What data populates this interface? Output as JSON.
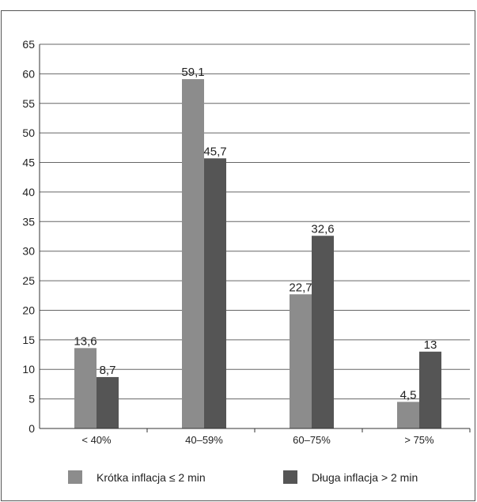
{
  "chart_data": {
    "type": "bar",
    "title": "",
    "xlabel": "",
    "ylabel": "",
    "categories": [
      "< 40%",
      "40–59%",
      "60–75%",
      "> 75%"
    ],
    "series": [
      {
        "name": "Krótka inflacja ≤ 2 min",
        "color": "#8c8c8c",
        "values": [
          13.6,
          59.1,
          22.7,
          4.5
        ],
        "labels": [
          "13,6",
          "59,1",
          "22,7",
          "4,5"
        ]
      },
      {
        "name": "Długa inflacja > 2 min",
        "color": "#555555",
        "values": [
          8.7,
          45.7,
          32.6,
          13
        ],
        "labels": [
          "8,7",
          "45,7",
          "32,6",
          "13"
        ]
      }
    ],
    "ylim": [
      0,
      65
    ],
    "yticks": [
      0,
      5,
      10,
      15,
      20,
      25,
      30,
      35,
      40,
      45,
      50,
      55,
      60,
      65
    ],
    "grid": true,
    "legend": "bottom"
  }
}
